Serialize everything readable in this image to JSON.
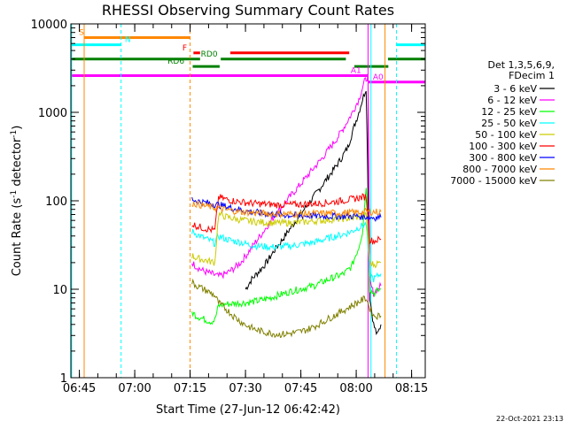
{
  "chart_data": {
    "type": "line",
    "title": "RHESSI Observing Summary Count Rates",
    "xlabel": "Start Time (27-Jun-12 06:42:42)",
    "ylabel_main": "Count Rate (s",
    "ylabel_sup": "-1",
    "ylabel_tail": " detector",
    "ylabel_sup2": "-1",
    "ylabel_end": ")",
    "footer_timestamp": "22-Oct-2021 23:13",
    "yscale": "log",
    "ylim": [
      1,
      10000
    ],
    "xlim_minutes": [
      0,
      96
    ],
    "x_ticks": [
      {
        "label": "06:45",
        "minutes": 2.3
      },
      {
        "label": "07:00",
        "minutes": 17.3
      },
      {
        "label": "07:15",
        "minutes": 32.3
      },
      {
        "label": "07:30",
        "minutes": 47.3
      },
      {
        "label": "07:45",
        "minutes": 62.3
      },
      {
        "label": "08:00",
        "minutes": 77.3
      },
      {
        "label": "08:15",
        "minutes": 92.3
      }
    ],
    "y_ticks": [
      {
        "label": "1",
        "value": 1
      },
      {
        "label": "10",
        "value": 10
      },
      {
        "label": "100",
        "value": 100
      },
      {
        "label": "1000",
        "value": 1000
      },
      {
        "label": "10000",
        "value": 10000
      }
    ],
    "legend_header": [
      "Det 1,3,5,6,9,",
      "FDecim 1"
    ],
    "series": [
      {
        "name": "3 - 6 keV",
        "color": "#000000",
        "points": [
          [
            47.3,
            10
          ],
          [
            49,
            13
          ],
          [
            51,
            16
          ],
          [
            53,
            20
          ],
          [
            55,
            27
          ],
          [
            57,
            35
          ],
          [
            59,
            46
          ],
          [
            61,
            60
          ],
          [
            63,
            78
          ],
          [
            65,
            100
          ],
          [
            67,
            130
          ],
          [
            69,
            170
          ],
          [
            71,
            220
          ],
          [
            73,
            290
          ],
          [
            75,
            400
          ],
          [
            76,
            550
          ],
          [
            77,
            750
          ],
          [
            78,
            1000
          ],
          [
            79,
            1400
          ],
          [
            80,
            1900
          ],
          [
            81,
            8
          ],
          [
            82,
            4
          ],
          [
            83,
            3
          ],
          [
            84,
            4
          ]
        ]
      },
      {
        "name": "6 - 12 keV",
        "color": "#ff00ff",
        "points": [
          [
            32.8,
            20
          ],
          [
            34,
            18
          ],
          [
            36,
            16
          ],
          [
            38,
            15
          ],
          [
            40,
            14
          ],
          [
            42,
            15
          ],
          [
            44,
            17
          ],
          [
            46,
            20
          ],
          [
            48,
            26
          ],
          [
            50,
            34
          ],
          [
            52,
            44
          ],
          [
            54,
            58
          ],
          [
            56,
            75
          ],
          [
            58,
            95
          ],
          [
            60,
            120
          ],
          [
            62,
            150
          ],
          [
            64,
            190
          ],
          [
            66,
            240
          ],
          [
            68,
            300
          ],
          [
            70,
            390
          ],
          [
            72,
            500
          ],
          [
            74,
            680
          ],
          [
            76,
            950
          ],
          [
            78,
            1400
          ],
          [
            79.5,
            2200
          ],
          [
            80.5,
            2600
          ],
          [
            81,
            12
          ],
          [
            82,
            9
          ],
          [
            83,
            10
          ],
          [
            84,
            11
          ]
        ]
      },
      {
        "name": "12 - 25 keV",
        "color": "#00ff00",
        "points": [
          [
            32.8,
            5.5
          ],
          [
            34,
            5
          ],
          [
            36,
            4.6
          ],
          [
            38,
            4.3
          ],
          [
            39,
            4.5
          ],
          [
            40,
            6.5
          ],
          [
            42,
            6.8
          ],
          [
            44,
            6.9
          ],
          [
            46,
            7
          ],
          [
            48,
            7.1
          ],
          [
            50,
            7.3
          ],
          [
            52,
            7.6
          ],
          [
            54,
            8
          ],
          [
            56,
            8.5
          ],
          [
            58,
            9
          ],
          [
            60,
            9.6
          ],
          [
            62,
            10
          ],
          [
            64,
            10.5
          ],
          [
            66,
            11
          ],
          [
            68,
            12
          ],
          [
            70,
            13
          ],
          [
            72,
            14
          ],
          [
            74,
            15
          ],
          [
            76,
            18
          ],
          [
            78,
            30
          ],
          [
            79,
            45
          ],
          [
            80,
            150
          ],
          [
            80.5,
            60
          ],
          [
            81,
            10
          ],
          [
            82,
            9
          ],
          [
            83,
            9.5
          ],
          [
            84,
            10
          ]
        ]
      },
      {
        "name": "25 - 50 keV",
        "color": "#00ffff",
        "points": [
          [
            32.8,
            45
          ],
          [
            34,
            42
          ],
          [
            36,
            38
          ],
          [
            38,
            35
          ],
          [
            39,
            33
          ],
          [
            40,
            40
          ],
          [
            42,
            37
          ],
          [
            44,
            35
          ],
          [
            46,
            34
          ],
          [
            48,
            32
          ],
          [
            50,
            31
          ],
          [
            52,
            30.5
          ],
          [
            54,
            30
          ],
          [
            56,
            30
          ],
          [
            58,
            30.5
          ],
          [
            60,
            31
          ],
          [
            62,
            32
          ],
          [
            64,
            33
          ],
          [
            66,
            34
          ],
          [
            68,
            36
          ],
          [
            70,
            38
          ],
          [
            72,
            40
          ],
          [
            74,
            42
          ],
          [
            76,
            45
          ],
          [
            78,
            50
          ],
          [
            80,
            55
          ],
          [
            81,
            15
          ],
          [
            82,
            13
          ],
          [
            83,
            14
          ],
          [
            84,
            15
          ]
        ]
      },
      {
        "name": "50 - 100 keV",
        "color": "#cccc00",
        "points": [
          [
            32.8,
            24
          ],
          [
            34,
            22.5
          ],
          [
            36,
            21.5
          ],
          [
            38,
            20.5
          ],
          [
            39,
            20
          ],
          [
            40,
            70
          ],
          [
            42,
            66
          ],
          [
            44,
            63
          ],
          [
            46,
            61
          ],
          [
            48,
            59
          ],
          [
            50,
            58
          ],
          [
            52,
            57
          ],
          [
            54,
            56.5
          ],
          [
            56,
            56
          ],
          [
            58,
            56
          ],
          [
            60,
            56.5
          ],
          [
            62,
            57
          ],
          [
            64,
            58
          ],
          [
            66,
            59
          ],
          [
            68,
            60
          ],
          [
            70,
            61
          ],
          [
            72,
            62
          ],
          [
            74,
            63
          ],
          [
            76,
            64
          ],
          [
            78,
            66
          ],
          [
            80,
            68
          ],
          [
            81,
            20
          ],
          [
            82,
            19
          ],
          [
            83,
            19.5
          ],
          [
            84,
            20
          ]
        ]
      },
      {
        "name": "100 - 300 keV",
        "color": "#ff0000",
        "points": [
          [
            32.8,
            55
          ],
          [
            34,
            52
          ],
          [
            36,
            49
          ],
          [
            38,
            47
          ],
          [
            39,
            46
          ],
          [
            40,
            110
          ],
          [
            42,
            104
          ],
          [
            44,
            100
          ],
          [
            46,
            97
          ],
          [
            48,
            95
          ],
          [
            50,
            93
          ],
          [
            52,
            92
          ],
          [
            54,
            91
          ],
          [
            56,
            90
          ],
          [
            58,
            90
          ],
          [
            60,
            90.5
          ],
          [
            62,
            91
          ],
          [
            64,
            92
          ],
          [
            66,
            93
          ],
          [
            68,
            94
          ],
          [
            70,
            96
          ],
          [
            72,
            98
          ],
          [
            74,
            101
          ],
          [
            76,
            104
          ],
          [
            78,
            108
          ],
          [
            80,
            112
          ],
          [
            81,
            36
          ],
          [
            82,
            35
          ],
          [
            83,
            36
          ],
          [
            84,
            37
          ]
        ]
      },
      {
        "name": "300 - 800 keV",
        "color": "#0000ff",
        "points": [
          [
            32.8,
            105
          ],
          [
            34,
            100
          ],
          [
            36,
            96
          ],
          [
            38,
            93
          ],
          [
            39,
            91
          ],
          [
            40,
            90
          ],
          [
            42,
            86
          ],
          [
            44,
            82
          ],
          [
            46,
            79
          ],
          [
            48,
            76
          ],
          [
            50,
            74
          ],
          [
            52,
            72
          ],
          [
            54,
            71
          ],
          [
            56,
            70
          ],
          [
            58,
            69
          ],
          [
            60,
            68.5
          ],
          [
            62,
            68
          ],
          [
            64,
            68
          ],
          [
            66,
            67.5
          ],
          [
            68,
            67
          ],
          [
            70,
            67
          ],
          [
            72,
            67
          ],
          [
            74,
            67
          ],
          [
            76,
            67
          ],
          [
            78,
            67
          ],
          [
            80,
            66
          ],
          [
            81,
            65
          ],
          [
            82,
            65
          ],
          [
            83,
            65
          ],
          [
            84,
            65
          ]
        ]
      },
      {
        "name": "800 - 7000 keV",
        "color": "#ff8800",
        "points": [
          [
            32.8,
            95
          ],
          [
            34,
            92
          ],
          [
            36,
            88
          ],
          [
            38,
            85
          ],
          [
            39,
            83
          ],
          [
            40,
            82
          ],
          [
            42,
            79
          ],
          [
            44,
            77
          ],
          [
            46,
            75
          ],
          [
            48,
            74
          ],
          [
            50,
            73
          ],
          [
            52,
            72
          ],
          [
            54,
            71.5
          ],
          [
            56,
            71
          ],
          [
            58,
            71
          ],
          [
            60,
            71
          ],
          [
            62,
            71
          ],
          [
            64,
            71.5
          ],
          [
            66,
            72
          ],
          [
            68,
            72
          ],
          [
            70,
            72.5
          ],
          [
            72,
            73
          ],
          [
            74,
            73
          ],
          [
            76,
            73.5
          ],
          [
            78,
            74
          ],
          [
            80,
            75
          ],
          [
            81,
            75
          ],
          [
            82,
            75
          ],
          [
            83,
            75
          ],
          [
            84,
            75
          ]
        ]
      },
      {
        "name": "7000 - 15000 keV",
        "color": "#808000",
        "points": [
          [
            32.8,
            12
          ],
          [
            34,
            11
          ],
          [
            36,
            10
          ],
          [
            38,
            9
          ],
          [
            39,
            8.5
          ],
          [
            40,
            7
          ],
          [
            42,
            6
          ],
          [
            44,
            5
          ],
          [
            46,
            4.3
          ],
          [
            48,
            3.8
          ],
          [
            50,
            3.5
          ],
          [
            52,
            3.3
          ],
          [
            54,
            3.2
          ],
          [
            56,
            3.1
          ],
          [
            58,
            3.1
          ],
          [
            60,
            3.2
          ],
          [
            62,
            3.3
          ],
          [
            64,
            3.5
          ],
          [
            66,
            3.8
          ],
          [
            68,
            4.2
          ],
          [
            70,
            4.7
          ],
          [
            72,
            5.2
          ],
          [
            74,
            5.8
          ],
          [
            76,
            6.5
          ],
          [
            78,
            7.2
          ],
          [
            80,
            8
          ],
          [
            81,
            6
          ],
          [
            82,
            5
          ],
          [
            83,
            5
          ],
          [
            84,
            5
          ]
        ]
      }
    ],
    "flags": [
      {
        "label": "S",
        "color": "#ff8800",
        "y": 7000,
        "segments": [
          [
            3.6,
            32.3
          ]
        ],
        "label_minutes": 2.2
      },
      {
        "label": "N",
        "color": "#00ffff",
        "y": 5800,
        "segments": [
          [
            0,
            13.6
          ],
          [
            88.2,
            96
          ]
        ],
        "label_minutes": 14.6
      },
      {
        "label": "F",
        "color": "#ff0000",
        "y": 4700,
        "segments": [
          [
            33.2,
            35
          ],
          [
            43.2,
            75.4
          ]
        ],
        "label_minutes": 30.2
      },
      {
        "label": "RD0",
        "color": "#008000",
        "y": 4000,
        "segments": [
          [
            0,
            35
          ],
          [
            40.6,
            74.5
          ],
          [
            85.9,
            96
          ]
        ],
        "label_minutes": 35.2
      },
      {
        "label": "RD6",
        "color": "#008000",
        "y": 3300,
        "segments": [
          [
            33,
            40.3
          ],
          [
            76.8,
            86
          ]
        ],
        "label_minutes": 26.2
      },
      {
        "label": "A1",
        "color": "#ff00ff",
        "y": 2600,
        "segments": [
          [
            0,
            80.5
          ]
        ],
        "label_minutes": 75.8
      },
      {
        "label": "A0",
        "color": "#ff00ff",
        "y": 2200,
        "segments": [
          [
            80.5,
            96
          ]
        ],
        "label_minutes": 81.8
      }
    ],
    "vertical_lines": [
      {
        "minutes": 3.6,
        "color": "#ff8800",
        "style": "solid"
      },
      {
        "minutes": 13.6,
        "color": "#00ffff",
        "style": "dashed"
      },
      {
        "minutes": 32.3,
        "color": "#ff8800",
        "style": "dashed"
      },
      {
        "minutes": 80.5,
        "color": "#ff00ff",
        "style": "solid"
      },
      {
        "minutes": 81.3,
        "color": "#00ffff",
        "style": "solid"
      },
      {
        "minutes": 85.1,
        "color": "#ff8800",
        "style": "solid"
      },
      {
        "minutes": 88.2,
        "color": "#00ffff",
        "style": "dashed"
      },
      {
        "minutes": 0.2,
        "color": "#00ffff",
        "style": "solid"
      }
    ]
  }
}
